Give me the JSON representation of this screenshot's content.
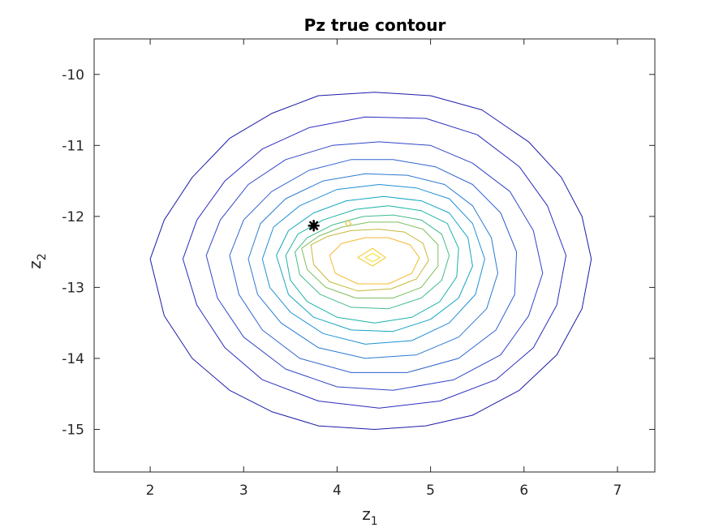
{
  "chart_data": {
    "type": "contour",
    "title": "Pz true contour",
    "xlabel": {
      "base": "z",
      "sub": "1"
    },
    "ylabel": {
      "base": "z",
      "sub": "2"
    },
    "xlim": [
      1.4,
      7.4
    ],
    "ylim": [
      -15.6,
      -9.5
    ],
    "xticks": [
      2,
      3,
      4,
      5,
      6,
      7
    ],
    "yticks": [
      -10,
      -11,
      -12,
      -13,
      -14,
      -15
    ],
    "grid": false,
    "colormap": "parula",
    "levels": [
      {
        "color": "#1c1ba8",
        "points": [
          [
            2.0,
            -12.6
          ],
          [
            2.15,
            -12.05
          ],
          [
            2.45,
            -11.45
          ],
          [
            2.85,
            -10.9
          ],
          [
            3.3,
            -10.55
          ],
          [
            3.8,
            -10.3
          ],
          [
            4.4,
            -10.25
          ],
          [
            5.0,
            -10.3
          ],
          [
            5.55,
            -10.5
          ],
          [
            6.05,
            -10.95
          ],
          [
            6.4,
            -11.45
          ],
          [
            6.62,
            -12.0
          ],
          [
            6.72,
            -12.6
          ],
          [
            6.62,
            -13.3
          ],
          [
            6.35,
            -13.95
          ],
          [
            5.95,
            -14.45
          ],
          [
            5.45,
            -14.8
          ],
          [
            4.95,
            -14.95
          ],
          [
            4.4,
            -15.0
          ],
          [
            3.8,
            -14.95
          ],
          [
            3.3,
            -14.75
          ],
          [
            2.85,
            -14.45
          ],
          [
            2.45,
            -14.0
          ],
          [
            2.15,
            -13.4
          ]
        ]
      },
      {
        "color": "#2a2cbf",
        "points": [
          [
            2.35,
            -12.6
          ],
          [
            2.5,
            -12.05
          ],
          [
            2.8,
            -11.5
          ],
          [
            3.2,
            -11.05
          ],
          [
            3.7,
            -10.75
          ],
          [
            4.3,
            -10.6
          ],
          [
            4.95,
            -10.62
          ],
          [
            5.5,
            -10.85
          ],
          [
            5.95,
            -11.3
          ],
          [
            6.25,
            -11.85
          ],
          [
            6.45,
            -12.55
          ],
          [
            6.35,
            -13.25
          ],
          [
            6.1,
            -13.85
          ],
          [
            5.7,
            -14.3
          ],
          [
            5.1,
            -14.6
          ],
          [
            4.45,
            -14.7
          ],
          [
            3.8,
            -14.6
          ],
          [
            3.2,
            -14.3
          ],
          [
            2.8,
            -13.85
          ],
          [
            2.5,
            -13.25
          ]
        ]
      },
      {
        "color": "#2f46c8",
        "points": [
          [
            2.6,
            -12.55
          ],
          [
            2.75,
            -12.05
          ],
          [
            3.05,
            -11.55
          ],
          [
            3.45,
            -11.2
          ],
          [
            3.95,
            -11.0
          ],
          [
            4.45,
            -10.95
          ],
          [
            5.0,
            -11.0
          ],
          [
            5.45,
            -11.25
          ],
          [
            5.85,
            -11.65
          ],
          [
            6.1,
            -12.2
          ],
          [
            6.2,
            -12.8
          ],
          [
            6.05,
            -13.4
          ],
          [
            5.75,
            -13.95
          ],
          [
            5.25,
            -14.3
          ],
          [
            4.6,
            -14.45
          ],
          [
            4.0,
            -14.4
          ],
          [
            3.45,
            -14.15
          ],
          [
            3.0,
            -13.7
          ],
          [
            2.72,
            -13.15
          ]
        ]
      },
      {
        "color": "#2e62cf",
        "points": [
          [
            2.85,
            -12.55
          ],
          [
            3.0,
            -12.05
          ],
          [
            3.3,
            -11.65
          ],
          [
            3.7,
            -11.35
          ],
          [
            4.15,
            -11.2
          ],
          [
            4.6,
            -11.2
          ],
          [
            5.05,
            -11.3
          ],
          [
            5.45,
            -11.55
          ],
          [
            5.75,
            -11.95
          ],
          [
            5.92,
            -12.5
          ],
          [
            5.9,
            -13.1
          ],
          [
            5.7,
            -13.6
          ],
          [
            5.3,
            -14.0
          ],
          [
            4.75,
            -14.2
          ],
          [
            4.15,
            -14.2
          ],
          [
            3.6,
            -14.0
          ],
          [
            3.2,
            -13.6
          ],
          [
            2.95,
            -13.1
          ]
        ]
      },
      {
        "color": "#2b7ad2",
        "points": [
          [
            3.05,
            -12.6
          ],
          [
            3.18,
            -12.1
          ],
          [
            3.45,
            -11.75
          ],
          [
            3.85,
            -11.5
          ],
          [
            4.3,
            -11.4
          ],
          [
            4.75,
            -11.42
          ],
          [
            5.15,
            -11.55
          ],
          [
            5.45,
            -11.85
          ],
          [
            5.65,
            -12.3
          ],
          [
            5.72,
            -12.8
          ],
          [
            5.6,
            -13.3
          ],
          [
            5.3,
            -13.7
          ],
          [
            4.85,
            -13.95
          ],
          [
            4.3,
            -14.0
          ],
          [
            3.8,
            -13.85
          ],
          [
            3.4,
            -13.5
          ],
          [
            3.15,
            -13.1
          ]
        ]
      },
      {
        "color": "#1f90d5",
        "points": [
          [
            3.2,
            -12.6
          ],
          [
            3.32,
            -12.15
          ],
          [
            3.6,
            -11.85
          ],
          [
            4.0,
            -11.62
          ],
          [
            4.45,
            -11.55
          ],
          [
            4.85,
            -11.6
          ],
          [
            5.2,
            -11.75
          ],
          [
            5.45,
            -12.1
          ],
          [
            5.58,
            -12.6
          ],
          [
            5.48,
            -13.1
          ],
          [
            5.2,
            -13.5
          ],
          [
            4.8,
            -13.75
          ],
          [
            4.3,
            -13.8
          ],
          [
            3.85,
            -13.65
          ],
          [
            3.5,
            -13.35
          ],
          [
            3.28,
            -13.0
          ]
        ]
      },
      {
        "color": "#13a4c2",
        "points": [
          [
            3.35,
            -12.55
          ],
          [
            3.48,
            -12.2
          ],
          [
            3.75,
            -11.95
          ],
          [
            4.1,
            -11.78
          ],
          [
            4.5,
            -11.72
          ],
          [
            4.9,
            -11.78
          ],
          [
            5.2,
            -11.95
          ],
          [
            5.4,
            -12.3
          ],
          [
            5.45,
            -12.7
          ],
          [
            5.3,
            -13.15
          ],
          [
            5.0,
            -13.45
          ],
          [
            4.6,
            -13.62
          ],
          [
            4.15,
            -13.6
          ],
          [
            3.75,
            -13.42
          ],
          [
            3.48,
            -13.1
          ]
        ]
      },
      {
        "color": "#1cb3a8",
        "points": [
          [
            3.45,
            -12.55
          ],
          [
            3.58,
            -12.25
          ],
          [
            3.85,
            -12.05
          ],
          [
            4.2,
            -11.9
          ],
          [
            4.55,
            -11.85
          ],
          [
            4.9,
            -11.92
          ],
          [
            5.18,
            -12.1
          ],
          [
            5.3,
            -12.45
          ],
          [
            5.28,
            -12.85
          ],
          [
            5.1,
            -13.2
          ],
          [
            4.8,
            -13.42
          ],
          [
            4.4,
            -13.5
          ],
          [
            4.0,
            -13.42
          ],
          [
            3.68,
            -13.2
          ],
          [
            3.5,
            -12.9
          ]
        ]
      },
      {
        "color": "#42bb8c",
        "points": [
          [
            3.55,
            -12.5
          ],
          [
            3.68,
            -12.3
          ],
          [
            3.95,
            -12.12
          ],
          [
            4.28,
            -12.0
          ],
          [
            4.6,
            -11.98
          ],
          [
            4.9,
            -12.05
          ],
          [
            5.12,
            -12.25
          ],
          [
            5.2,
            -12.55
          ],
          [
            5.12,
            -12.9
          ],
          [
            4.9,
            -13.15
          ],
          [
            4.55,
            -13.3
          ],
          [
            4.15,
            -13.28
          ],
          [
            3.82,
            -13.1
          ],
          [
            3.6,
            -12.82
          ]
        ]
      },
      {
        "color": "#7fbf5e",
        "points": [
          [
            3.62,
            -12.45
          ],
          [
            3.8,
            -12.28
          ],
          [
            4.05,
            -12.15
          ],
          [
            4.35,
            -12.08
          ],
          [
            4.65,
            -12.08
          ],
          [
            4.92,
            -12.18
          ],
          [
            5.08,
            -12.4
          ],
          [
            5.08,
            -12.7
          ],
          [
            4.9,
            -13.0
          ],
          [
            4.6,
            -13.15
          ],
          [
            4.2,
            -13.15
          ],
          [
            3.88,
            -13.0
          ],
          [
            3.68,
            -12.75
          ]
        ]
      },
      {
        "color": "#c3b93a",
        "points": [
          [
            3.72,
            -12.4
          ],
          [
            3.9,
            -12.28
          ],
          [
            4.15,
            -12.2
          ],
          [
            4.45,
            -12.18
          ],
          [
            4.72,
            -12.22
          ],
          [
            4.92,
            -12.38
          ],
          [
            4.98,
            -12.62
          ],
          [
            4.85,
            -12.88
          ],
          [
            4.58,
            -13.02
          ],
          [
            4.22,
            -13.05
          ],
          [
            3.92,
            -12.92
          ],
          [
            3.75,
            -12.68
          ]
        ]
      },
      {
        "color": "#f5b92d",
        "points": [
          [
            3.92,
            -12.55
          ],
          [
            4.05,
            -12.38
          ],
          [
            4.3,
            -12.3
          ],
          [
            4.55,
            -12.3
          ],
          [
            4.78,
            -12.4
          ],
          [
            4.88,
            -12.58
          ],
          [
            4.8,
            -12.8
          ],
          [
            4.55,
            -12.95
          ],
          [
            4.22,
            -12.95
          ],
          [
            3.98,
            -12.8
          ]
        ]
      },
      {
        "color": "#f0c92a",
        "points": [
          [
            4.22,
            -12.58
          ],
          [
            4.38,
            -12.45
          ],
          [
            4.52,
            -12.58
          ],
          [
            4.38,
            -12.7
          ]
        ]
      },
      {
        "color": "#f3e01d",
        "points": [
          [
            4.3,
            -12.58
          ],
          [
            4.38,
            -12.52
          ],
          [
            4.46,
            -12.58
          ],
          [
            4.38,
            -12.64
          ]
        ]
      },
      {
        "color": "#e8c02a",
        "points": [
          [
            4.11,
            -12.05
          ],
          [
            4.15,
            -12.1
          ],
          [
            4.12,
            -12.14
          ],
          [
            4.09,
            -12.1
          ]
        ]
      }
    ],
    "marker": {
      "x": 3.75,
      "y": -12.13,
      "symbol": "star",
      "color": "#000000"
    }
  }
}
